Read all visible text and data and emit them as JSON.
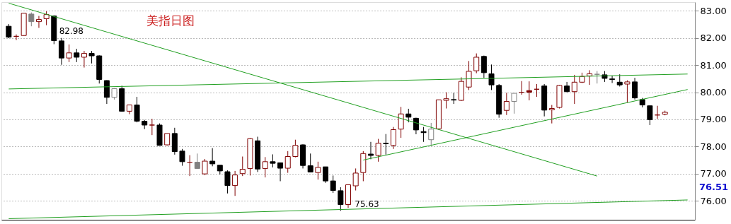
{
  "chart_data": {
    "type": "candlestick",
    "title": "美指日图",
    "categories": [
      null,
      null,
      null,
      null,
      null,
      null,
      null,
      null,
      null,
      null,
      null,
      null,
      null,
      null,
      null,
      null,
      null,
      null,
      null,
      null,
      null,
      null,
      null,
      null,
      null,
      null,
      null,
      null,
      null,
      null,
      null,
      null,
      null,
      null,
      null,
      null,
      null,
      null,
      null,
      null,
      null,
      null,
      null,
      null,
      null,
      null,
      null,
      null,
      null,
      null,
      null,
      null,
      null,
      null,
      null,
      null,
      null,
      null,
      null,
      null,
      null,
      null,
      null,
      null,
      null,
      null,
      null,
      null,
      null,
      null,
      null,
      null,
      null,
      null,
      null,
      null,
      null,
      null,
      null,
      null,
      null,
      null,
      null,
      null,
      null,
      null,
      null,
      null,
      null,
      null,
      null
    ],
    "ohlc": [
      [
        82.43,
        82.51,
        81.99,
        82.03
      ],
      [
        82.06,
        82.13,
        81.92,
        82.06
      ],
      [
        82.09,
        82.91,
        82.09,
        82.91
      ],
      [
        82.88,
        82.94,
        82.43,
        82.6
      ],
      [
        82.6,
        82.81,
        82.37,
        82.68
      ],
      [
        82.71,
        82.98,
        82.47,
        82.86
      ],
      [
        82.81,
        82.83,
        81.77,
        81.9
      ],
      [
        81.89,
        82.0,
        81.01,
        81.26
      ],
      [
        81.26,
        81.76,
        81.11,
        81.45
      ],
      [
        81.45,
        81.6,
        81.11,
        81.29
      ],
      [
        81.29,
        81.52,
        80.91,
        81.43
      ],
      [
        81.43,
        81.52,
        81.06,
        81.34
      ],
      [
        81.34,
        81.36,
        80.32,
        80.47
      ],
      [
        80.43,
        80.44,
        79.57,
        79.81
      ],
      [
        79.81,
        80.15,
        79.73,
        80.13
      ],
      [
        80.13,
        80.24,
        79.28,
        79.3
      ],
      [
        79.3,
        79.53,
        79.19,
        79.53
      ],
      [
        79.53,
        79.83,
        78.89,
        78.93
      ],
      [
        78.93,
        78.98,
        78.64,
        78.79
      ],
      [
        78.79,
        79.02,
        78.42,
        78.79
      ],
      [
        78.79,
        78.85,
        78.04,
        78.04
      ],
      [
        78.06,
        78.48,
        78.04,
        78.48
      ],
      [
        78.48,
        78.69,
        77.7,
        77.81
      ],
      [
        77.83,
        77.91,
        77.29,
        77.44
      ],
      [
        77.42,
        77.68,
        76.91,
        77.42
      ],
      [
        77.42,
        77.74,
        77.19,
        77.19
      ],
      [
        76.99,
        77.54,
        76.95,
        77.46
      ],
      [
        77.46,
        77.94,
        77.27,
        77.36
      ],
      [
        77.31,
        77.31,
        76.97,
        77.1
      ],
      [
        77.07,
        77.12,
        76.27,
        76.56
      ],
      [
        76.56,
        77.1,
        76.18,
        76.95
      ],
      [
        77.0,
        77.63,
        76.91,
        77.16
      ],
      [
        77.19,
        78.31,
        76.93,
        78.29
      ],
      [
        78.21,
        78.36,
        77.06,
        77.17
      ],
      [
        77.19,
        77.61,
        76.86,
        77.44
      ],
      [
        77.44,
        77.71,
        77.23,
        77.38
      ],
      [
        77.4,
        77.4,
        76.72,
        77.2
      ],
      [
        77.2,
        77.83,
        77.03,
        77.63
      ],
      [
        77.63,
        78.25,
        77.6,
        78.04
      ],
      [
        78.06,
        78.08,
        77.19,
        77.3
      ],
      [
        77.29,
        77.74,
        77.06,
        77.06
      ],
      [
        77.04,
        77.44,
        76.78,
        77.23
      ],
      [
        77.25,
        77.25,
        76.66,
        76.73
      ],
      [
        76.73,
        76.93,
        76.29,
        76.38
      ],
      [
        76.37,
        76.5,
        75.63,
        75.86
      ],
      [
        75.86,
        76.59,
        75.74,
        76.59
      ],
      [
        76.55,
        77.19,
        76.38,
        77.02
      ],
      [
        77.04,
        77.83,
        76.72,
        77.74
      ],
      [
        77.72,
        78.17,
        77.53,
        77.67
      ],
      [
        77.67,
        78.28,
        77.44,
        78.12
      ],
      [
        78.12,
        78.46,
        77.7,
        78.1
      ],
      [
        78.04,
        78.72,
        77.91,
        78.62
      ],
      [
        78.64,
        79.46,
        78.32,
        79.2
      ],
      [
        79.2,
        79.39,
        78.89,
        79.08
      ],
      [
        79.04,
        79.06,
        78.45,
        78.61
      ],
      [
        78.55,
        78.72,
        78.17,
        78.51
      ],
      [
        78.25,
        78.87,
        78.02,
        78.64
      ],
      [
        78.65,
        79.72,
        78.62,
        79.72
      ],
      [
        79.7,
        80.0,
        79.4,
        79.76
      ],
      [
        79.73,
        79.98,
        79.57,
        79.71
      ],
      [
        79.7,
        80.55,
        79.68,
        80.4
      ],
      [
        80.19,
        81.15,
        80.08,
        80.77
      ],
      [
        80.79,
        81.43,
        80.7,
        81.29
      ],
      [
        81.32,
        81.35,
        80.53,
        80.72
      ],
      [
        80.68,
        81.02,
        80.08,
        80.27
      ],
      [
        80.25,
        80.3,
        79.06,
        79.19
      ],
      [
        79.33,
        79.98,
        79.16,
        79.66
      ],
      [
        79.66,
        79.96,
        79.21,
        79.96
      ],
      [
        80.0,
        80.41,
        79.91,
        80.0
      ],
      [
        80.06,
        80.4,
        79.7,
        80.0
      ],
      [
        80.11,
        80.3,
        79.83,
        80.11
      ],
      [
        80.23,
        80.3,
        79.11,
        79.34
      ],
      [
        79.35,
        79.53,
        78.85,
        79.4
      ],
      [
        79.44,
        80.27,
        79.4,
        80.25
      ],
      [
        80.23,
        80.38,
        80.0,
        80.02
      ],
      [
        80.02,
        80.64,
        79.57,
        80.37
      ],
      [
        80.37,
        80.72,
        80.34,
        80.58
      ],
      [
        80.6,
        80.81,
        80.27,
        80.68
      ],
      [
        80.66,
        80.78,
        80.32,
        80.66
      ],
      [
        80.64,
        80.78,
        80.38,
        80.51
      ],
      [
        80.49,
        80.61,
        80.34,
        80.47
      ],
      [
        80.37,
        80.66,
        80.21,
        80.27
      ],
      [
        80.3,
        80.44,
        79.62,
        80.38
      ],
      [
        80.38,
        80.53,
        79.73,
        79.79
      ],
      [
        79.73,
        79.79,
        79.44,
        79.53
      ],
      [
        79.5,
        79.5,
        78.79,
        78.99
      ],
      [
        79.16,
        79.5,
        79.02,
        79.16
      ],
      [
        79.19,
        79.32,
        79.15,
        79.26
      ],
      null,
      null,
      null
    ],
    "colors": [
      "#000000",
      "#800000",
      "#800000",
      "#808080",
      "#800000",
      "#800000",
      "#000000",
      "#000000",
      "#800000",
      "#000000",
      "#800000",
      "#000000",
      "#000000",
      "#000000",
      "#808080",
      "#000000",
      "#800000",
      "#000000",
      "#000000",
      "#800000",
      "#000000",
      "#800000",
      "#000000",
      "#000000",
      "#800000",
      "#808080",
      "#800000",
      "#000000",
      "#000000",
      "#000000",
      "#800000",
      "#800000",
      "#800000",
      "#000000",
      "#800000",
      "#000000",
      "#000000",
      "#800000",
      "#800000",
      "#000000",
      "#000000",
      "#800000",
      "#000000",
      "#000000",
      "#000000",
      "#800000",
      "#800000",
      "#800000",
      "#000000",
      "#800000",
      "#000000",
      "#800000",
      "#800000",
      "#000000",
      "#000000",
      "#000000",
      "#808080",
      "#800000",
      "#800000",
      "#000000",
      "#800000",
      "#800000",
      "#800000",
      "#000000",
      "#000000",
      "#000000",
      "#800000",
      "#808080",
      "#800000",
      "#800000",
      "#800000",
      "#000000",
      "#800000",
      "#800000",
      "#000000",
      "#800000",
      "#800000",
      "#800000",
      "#808080",
      "#000000",
      "#000000",
      "#000000",
      "#800000",
      "#000000",
      "#000000",
      "#000000",
      "#800000",
      "#800000",
      null,
      null,
      null
    ],
    "series": [
      {
        "type": "line",
        "color": "#22a022",
        "values": [
          83.28,
          null,
          null,
          null,
          null,
          null,
          null,
          null,
          null,
          null,
          null,
          null,
          null,
          null,
          null,
          null,
          null,
          null,
          null,
          null,
          null,
          null,
          null,
          null,
          null,
          null,
          null,
          null,
          null,
          null,
          null,
          null,
          null,
          null,
          null,
          null,
          null,
          null,
          null,
          null,
          null,
          null,
          null,
          null,
          null,
          null,
          null,
          null,
          null,
          null,
          null,
          null,
          null,
          null,
          null,
          null,
          null,
          null,
          null,
          null,
          null,
          null,
          null,
          null,
          null,
          null,
          null,
          null,
          null,
          null,
          null,
          null,
          null,
          null,
          null,
          null,
          null,
          null,
          76.91,
          null,
          null,
          null,
          null,
          null,
          null,
          null,
          null,
          null,
          null,
          null,
          null
        ]
      },
      {
        "type": "line",
        "color": "#22a022",
        "values": [
          80.12,
          null,
          null,
          null,
          null,
          null,
          null,
          null,
          null,
          null,
          null,
          null,
          null,
          null,
          null,
          null,
          null,
          null,
          null,
          null,
          null,
          null,
          null,
          null,
          null,
          null,
          null,
          null,
          null,
          null,
          null,
          null,
          null,
          null,
          null,
          null,
          null,
          null,
          null,
          null,
          null,
          null,
          null,
          null,
          null,
          null,
          null,
          null,
          null,
          null,
          null,
          null,
          null,
          null,
          null,
          null,
          null,
          null,
          null,
          null,
          null,
          null,
          null,
          null,
          null,
          null,
          null,
          null,
          null,
          null,
          null,
          null,
          null,
          null,
          null,
          null,
          null,
          null,
          null,
          null,
          null,
          null,
          null,
          null,
          null,
          null,
          null,
          null,
          null,
          null,
          80.67
        ]
      },
      {
        "type": "line",
        "color": "#22a022",
        "values": [
          75.34,
          null,
          null,
          null,
          null,
          null,
          null,
          null,
          null,
          null,
          null,
          null,
          null,
          null,
          null,
          null,
          null,
          null,
          null,
          null,
          null,
          null,
          null,
          null,
          null,
          null,
          null,
          null,
          null,
          null,
          null,
          null,
          null,
          null,
          null,
          null,
          null,
          null,
          null,
          null,
          null,
          null,
          null,
          null,
          null,
          null,
          null,
          null,
          null,
          null,
          null,
          null,
          null,
          null,
          null,
          null,
          null,
          null,
          null,
          null,
          null,
          null,
          null,
          null,
          null,
          null,
          null,
          null,
          null,
          null,
          null,
          null,
          null,
          null,
          null,
          null,
          null,
          null,
          null,
          null,
          null,
          null,
          null,
          null,
          null,
          null,
          null,
          null,
          null,
          null,
          76.03
        ]
      },
      {
        "type": "line",
        "color": "#22a022",
        "values": [
          null,
          null,
          null,
          null,
          null,
          null,
          null,
          null,
          null,
          null,
          null,
          null,
          null,
          null,
          null,
          null,
          null,
          null,
          null,
          null,
          null,
          null,
          null,
          null,
          null,
          null,
          null,
          null,
          null,
          null,
          null,
          null,
          null,
          null,
          null,
          null,
          null,
          null,
          null,
          null,
          null,
          null,
          null,
          null,
          null,
          null,
          null,
          77.5,
          null,
          null,
          null,
          null,
          null,
          null,
          null,
          null,
          null,
          null,
          null,
          null,
          null,
          null,
          null,
          null,
          null,
          null,
          null,
          null,
          null,
          null,
          null,
          null,
          null,
          null,
          null,
          null,
          null,
          null,
          null,
          null,
          null,
          null,
          null,
          null,
          null,
          null,
          null,
          null,
          null,
          null,
          80.1
        ]
      }
    ],
    "annotations": [
      "82.98",
      "75.63",
      "76.51"
    ],
    "ylim": [
      75.3,
      83.32
    ],
    "yticks": [
      {
        "value": 76,
        "label": "76.00"
      },
      {
        "value": 77,
        "label": "77.00"
      },
      {
        "value": 78,
        "label": "78.00"
      },
      {
        "value": 79,
        "label": "79.00"
      },
      {
        "value": 80,
        "label": "80.00"
      },
      {
        "value": 81,
        "label": "81.00"
      },
      {
        "value": 82,
        "label": "82.00"
      },
      {
        "value": 83,
        "label": "83.00"
      }
    ],
    "grid": "y",
    "tick_labels": "y"
  }
}
